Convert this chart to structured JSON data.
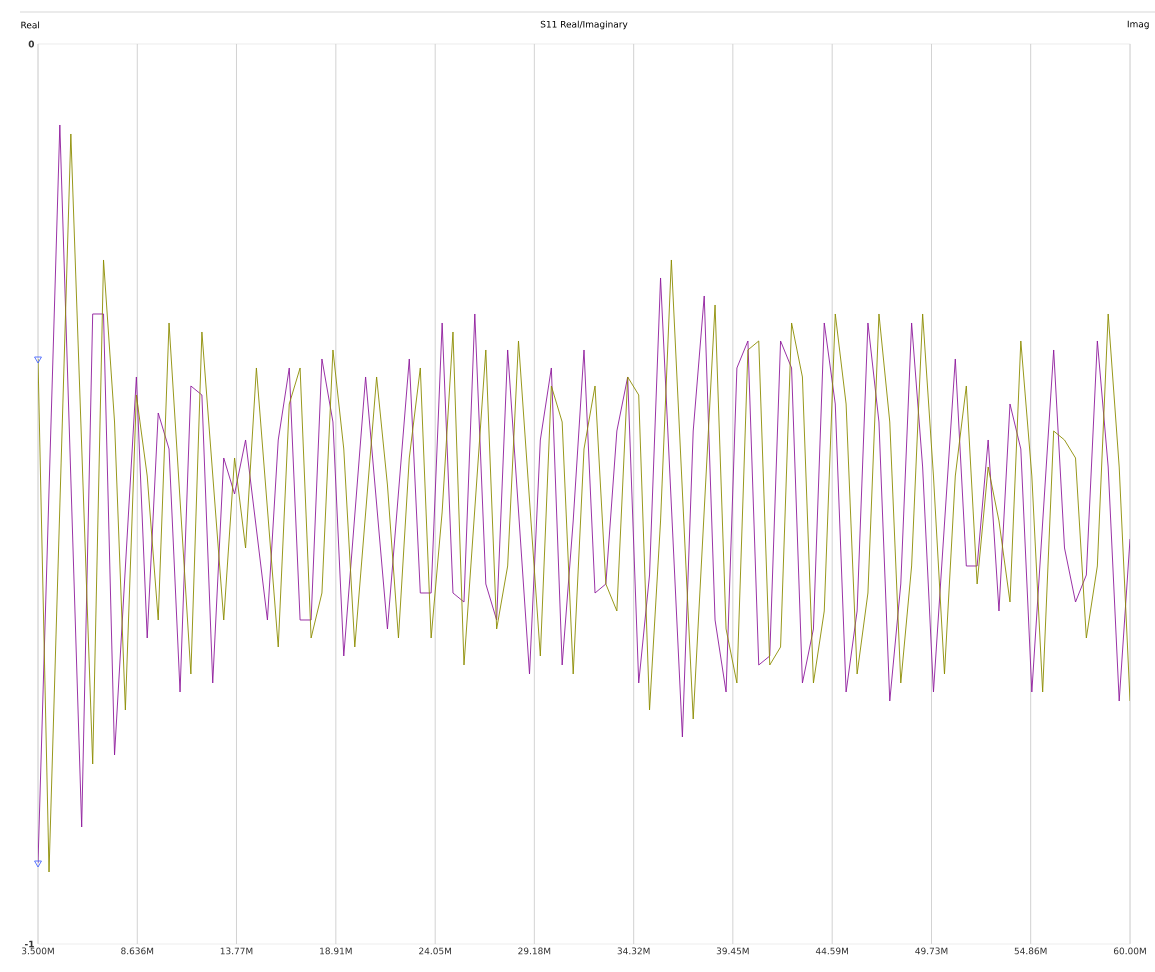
{
  "chart_data": {
    "type": "line",
    "title": "S11 Real/Imaginary",
    "ylabel": "Real",
    "y2label": "Imag",
    "xlim": [
      3.5,
      60.0
    ],
    "ylim": [
      -1,
      0
    ],
    "xticks": [
      {
        "value": 3.5,
        "label": "3.500M"
      },
      {
        "value": 8.636,
        "label": "8.636M"
      },
      {
        "value": 13.77,
        "label": "13.77M"
      },
      {
        "value": 18.91,
        "label": "18.91M"
      },
      {
        "value": 24.05,
        "label": "24.05M"
      },
      {
        "value": 29.18,
        "label": "29.18M"
      },
      {
        "value": 34.32,
        "label": "34.32M"
      },
      {
        "value": 39.45,
        "label": "39.45M"
      },
      {
        "value": 44.59,
        "label": "44.59M"
      },
      {
        "value": 49.73,
        "label": "49.73M"
      },
      {
        "value": 54.86,
        "label": "54.86M"
      },
      {
        "value": 60.0,
        "label": "60.00M"
      }
    ],
    "yticks": [
      0,
      -1
    ],
    "grid": "x",
    "legend": false,
    "series": [
      {
        "color": "#8e1a9c",
        "x": [
          3.5,
          4.63,
          5.76,
          6.33,
          6.89,
          7.46,
          8.59,
          9.15,
          9.72,
          10.28,
          10.85,
          11.41,
          11.98,
          12.54,
          13.11,
          13.67,
          14.24,
          15.37,
          15.93,
          16.5,
          17.06,
          17.63,
          18.19,
          18.76,
          19.32,
          20.45,
          21.58,
          22.71,
          23.28,
          23.84,
          24.41,
          24.97,
          25.54,
          26.1,
          26.67,
          27.23,
          27.8,
          28.93,
          29.49,
          30.06,
          30.62,
          31.19,
          31.75,
          32.32,
          32.88,
          33.45,
          34.01,
          34.58,
          35.14,
          35.71,
          36.84,
          37.4,
          37.97,
          38.53,
          39.1,
          39.66,
          40.23,
          40.79,
          41.36,
          41.92,
          42.49,
          43.05,
          43.62,
          44.18,
          44.75,
          45.31,
          45.88,
          46.44,
          47.01,
          47.57,
          48.14,
          48.7,
          49.27,
          49.83,
          50.96,
          51.53,
          52.09,
          52.66,
          53.22,
          53.79,
          54.35,
          54.92,
          56.05,
          56.61,
          57.18,
          57.74,
          58.31,
          58.87,
          59.44,
          60.0
        ],
        "values": [
          -0.91,
          -0.09,
          -0.87,
          -0.3,
          -0.3,
          -0.79,
          -0.37,
          -0.66,
          -0.41,
          -0.45,
          -0.72,
          -0.38,
          -0.39,
          -0.71,
          -0.46,
          -0.5,
          -0.44,
          -0.64,
          -0.44,
          -0.36,
          -0.64,
          -0.64,
          -0.35,
          -0.42,
          -0.68,
          -0.37,
          -0.65,
          -0.35,
          -0.61,
          -0.61,
          -0.31,
          -0.61,
          -0.62,
          -0.3,
          -0.6,
          -0.64,
          -0.34,
          -0.7,
          -0.44,
          -0.36,
          -0.69,
          -0.53,
          -0.34,
          -0.61,
          -0.6,
          -0.43,
          -0.37,
          -0.71,
          -0.59,
          -0.26,
          -0.77,
          -0.43,
          -0.28,
          -0.64,
          -0.72,
          -0.36,
          -0.33,
          -0.69,
          -0.68,
          -0.33,
          -0.36,
          -0.71,
          -0.65,
          -0.31,
          -0.4,
          -0.72,
          -0.63,
          -0.31,
          -0.42,
          -0.73,
          -0.6,
          -0.31,
          -0.47,
          -0.72,
          -0.35,
          -0.58,
          -0.58,
          -0.44,
          -0.63,
          -0.4,
          -0.45,
          -0.72,
          -0.34,
          -0.56,
          -0.62,
          -0.59,
          -0.33,
          -0.47,
          -0.73,
          -0.55
        ]
      },
      {
        "color": "#8c8c00",
        "x": [
          3.5,
          4.07,
          5.2,
          6.33,
          6.89,
          7.46,
          8.02,
          8.59,
          9.15,
          9.72,
          10.28,
          11.41,
          11.98,
          13.11,
          13.67,
          14.24,
          14.8,
          15.93,
          16.5,
          17.06,
          17.63,
          18.19,
          18.76,
          19.32,
          19.89,
          21.02,
          21.58,
          22.15,
          22.71,
          23.28,
          23.84,
          24.41,
          24.97,
          25.54,
          26.67,
          27.23,
          27.8,
          28.36,
          29.49,
          30.06,
          30.62,
          31.19,
          31.75,
          32.32,
          32.88,
          33.45,
          34.01,
          34.58,
          35.14,
          35.71,
          36.27,
          37.4,
          38.53,
          39.1,
          39.66,
          40.23,
          40.79,
          41.36,
          41.92,
          42.49,
          43.05,
          43.62,
          44.18,
          44.75,
          45.31,
          45.88,
          46.44,
          47.01,
          47.57,
          48.14,
          48.7,
          49.27,
          49.83,
          50.4,
          50.96,
          51.53,
          52.09,
          52.66,
          53.22,
          53.79,
          54.35,
          54.92,
          55.48,
          56.05,
          56.61,
          57.18,
          57.74,
          58.31,
          58.87,
          59.44,
          60.0
        ],
        "values": [
          -0.35,
          -0.92,
          -0.1,
          -0.8,
          -0.24,
          -0.42,
          -0.74,
          -0.39,
          -0.48,
          -0.64,
          -0.31,
          -0.7,
          -0.32,
          -0.64,
          -0.46,
          -0.56,
          -0.36,
          -0.67,
          -0.4,
          -0.36,
          -0.66,
          -0.61,
          -0.34,
          -0.45,
          -0.67,
          -0.37,
          -0.49,
          -0.66,
          -0.46,
          -0.36,
          -0.66,
          -0.52,
          -0.32,
          -0.69,
          -0.34,
          -0.65,
          -0.58,
          -0.33,
          -0.68,
          -0.38,
          -0.42,
          -0.7,
          -0.45,
          -0.38,
          -0.6,
          -0.63,
          -0.37,
          -0.39,
          -0.74,
          -0.53,
          -0.24,
          -0.75,
          -0.29,
          -0.65,
          -0.71,
          -0.34,
          -0.33,
          -0.69,
          -0.67,
          -0.31,
          -0.37,
          -0.71,
          -0.63,
          -0.3,
          -0.4,
          -0.7,
          -0.61,
          -0.3,
          -0.42,
          -0.71,
          -0.58,
          -0.3,
          -0.48,
          -0.7,
          -0.48,
          -0.38,
          -0.6,
          -0.47,
          -0.53,
          -0.62,
          -0.33,
          -0.48,
          -0.72,
          -0.43,
          -0.44,
          -0.46,
          -0.66,
          -0.58,
          -0.3,
          -0.47,
          -0.73
        ]
      },
      {
        "type": "scatter",
        "marker": "triangle",
        "color": "#3355ff",
        "x": [
          3.5,
          3.5
        ],
        "values": [
          -0.35,
          -0.91
        ]
      }
    ]
  }
}
